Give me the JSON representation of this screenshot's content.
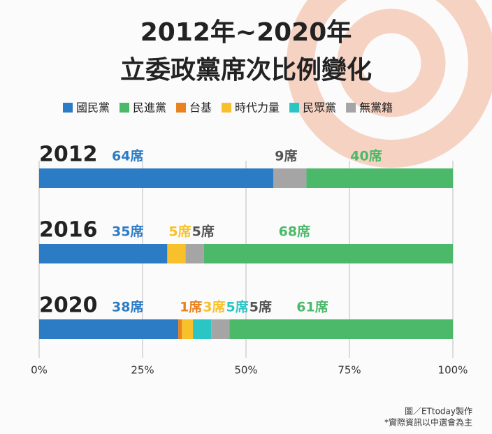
{
  "chart_data": {
    "type": "stacked-bar-100",
    "title": "2012年~2020年",
    "subtitle": "立委政黨席次比例變化",
    "categories": [
      "2012",
      "2016",
      "2020"
    ],
    "series": [
      {
        "name": "國民黨",
        "color": "#2b7bc5",
        "values": [
          64,
          35,
          38
        ],
        "value_labels": [
          "64席",
          "35席",
          "38席"
        ]
      },
      {
        "name": "民進黨",
        "color": "#4cb86a",
        "values": [
          40,
          68,
          61
        ],
        "value_labels": [
          "40席",
          "68席",
          "61席"
        ]
      },
      {
        "name": "台基",
        "color": "#e8821e",
        "values": [
          null,
          null,
          1
        ],
        "value_labels": [
          null,
          null,
          "1席"
        ]
      },
      {
        "name": "時代力量",
        "color": "#f8c12b",
        "values": [
          null,
          5,
          3
        ],
        "value_labels": [
          null,
          "5席",
          "3席"
        ]
      },
      {
        "name": "民眾黨",
        "color": "#2bc5c5",
        "values": [
          null,
          null,
          5
        ],
        "value_labels": [
          null,
          null,
          "5席"
        ]
      },
      {
        "name": "無黨籍",
        "color": "#a5a5a5",
        "values": [
          9,
          5,
          5
        ],
        "value_labels": [
          "9席",
          "5席",
          "5席"
        ]
      }
    ],
    "xlim": [
      0,
      100
    ],
    "xticks": [
      {
        "value": 0,
        "label": "0%"
      },
      {
        "value": 25,
        "label": "25%"
      },
      {
        "value": 50,
        "label": "50%"
      },
      {
        "value": 75,
        "label": "75%"
      },
      {
        "value": 100,
        "label": "100%"
      }
    ],
    "grid": true,
    "source": "圖／ETtoday製作",
    "note": "*實際資訊以中選會為主"
  }
}
